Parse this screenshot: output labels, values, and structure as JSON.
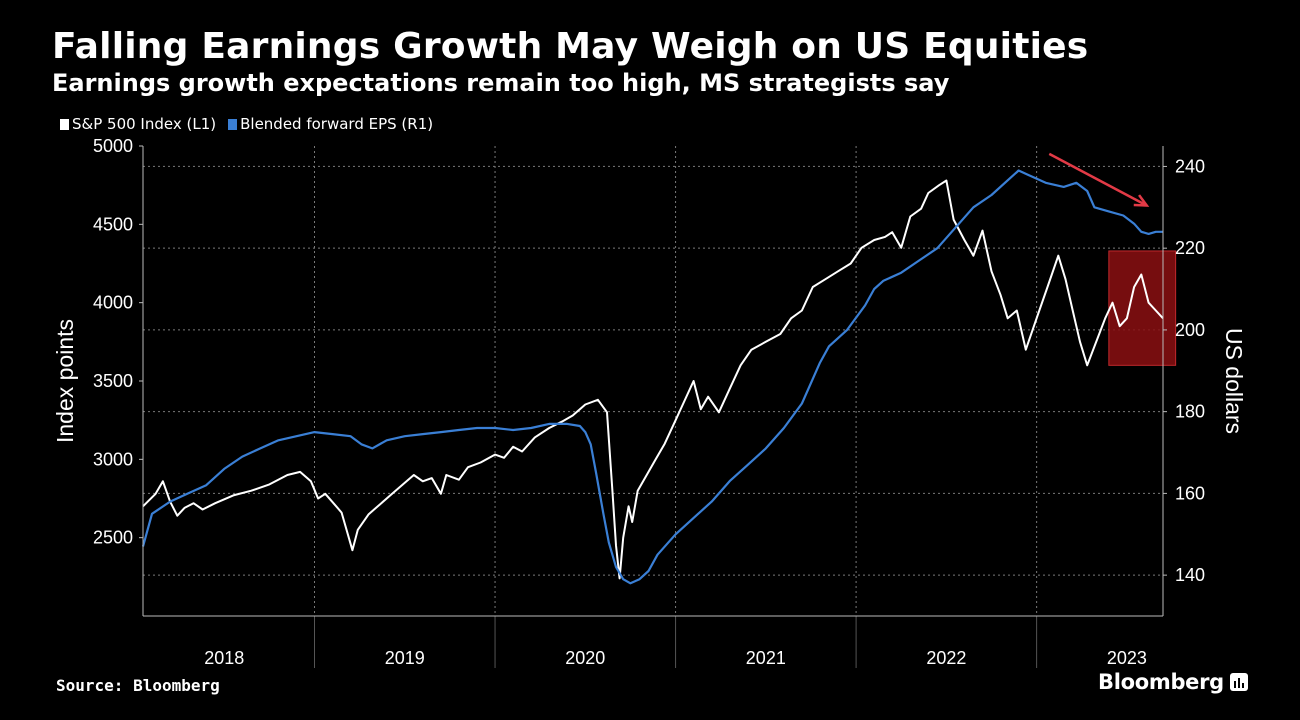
{
  "header": {
    "title": "Falling Earnings Growth May Weigh on US Equities",
    "subtitle": "Earnings growth expectations remain too high, MS strategists say"
  },
  "legend": {
    "sp500": "S&P 500 Index (L1)",
    "eps": "Blended forward EPS (R1)"
  },
  "footer": {
    "source": "Source: Bloomberg",
    "brand": "Bloomberg"
  },
  "colors": {
    "background": "#000000",
    "sp500": "#ffffff",
    "eps": "#3a7fd5",
    "highlight": "#8b0f12",
    "arrow": "#e23a46",
    "grid": "#7a7a7a"
  },
  "chart_data": {
    "type": "line",
    "title": "Falling Earnings Growth May Weigh on US Equities",
    "ylabel_left": "Index points",
    "ylabel_right": "US dollars",
    "xlabel": "",
    "x_range": [
      2017.55,
      2023.2
    ],
    "ylim_left": [
      2000,
      5000
    ],
    "ylim_right": [
      130,
      245
    ],
    "yticks_left": [
      2500,
      3000,
      3500,
      4000,
      4500,
      5000
    ],
    "yticks_right": [
      140,
      160,
      180,
      200,
      220,
      240
    ],
    "x_tick_labels": [
      {
        "label": "2018",
        "x": 2018.0
      },
      {
        "label": "2019",
        "x": 2019.0
      },
      {
        "label": "2020",
        "x": 2020.0
      },
      {
        "label": "2021",
        "x": 2021.0
      },
      {
        "label": "2022",
        "x": 2022.0
      },
      {
        "label": "2023",
        "x": 2023.0
      }
    ],
    "x_dividers": [
      2018.5,
      2019.5,
      2020.5,
      2021.5,
      2022.5
    ],
    "grid": true,
    "series": [
      {
        "name": "S&P 500 Index (L1)",
        "axis": "left",
        "points": [
          [
            2017.55,
            2700
          ],
          [
            2017.62,
            2780
          ],
          [
            2017.66,
            2860
          ],
          [
            2017.7,
            2730
          ],
          [
            2017.74,
            2640
          ],
          [
            2017.78,
            2690
          ],
          [
            2017.83,
            2720
          ],
          [
            2017.88,
            2680
          ],
          [
            2017.95,
            2720
          ],
          [
            2018.05,
            2770
          ],
          [
            2018.15,
            2800
          ],
          [
            2018.25,
            2840
          ],
          [
            2018.35,
            2900
          ],
          [
            2018.42,
            2920
          ],
          [
            2018.48,
            2860
          ],
          [
            2018.52,
            2750
          ],
          [
            2018.56,
            2780
          ],
          [
            2018.62,
            2700
          ],
          [
            2018.65,
            2660
          ],
          [
            2018.71,
            2420
          ],
          [
            2018.74,
            2550
          ],
          [
            2018.8,
            2650
          ],
          [
            2018.87,
            2720
          ],
          [
            2018.93,
            2780
          ],
          [
            2019.0,
            2850
          ],
          [
            2019.05,
            2900
          ],
          [
            2019.1,
            2860
          ],
          [
            2019.15,
            2880
          ],
          [
            2019.2,
            2780
          ],
          [
            2019.23,
            2900
          ],
          [
            2019.3,
            2870
          ],
          [
            2019.35,
            2950
          ],
          [
            2019.42,
            2980
          ],
          [
            2019.5,
            3030
          ],
          [
            2019.55,
            3010
          ],
          [
            2019.6,
            3080
          ],
          [
            2019.65,
            3050
          ],
          [
            2019.72,
            3140
          ],
          [
            2019.8,
            3200
          ],
          [
            2019.87,
            3240
          ],
          [
            2019.93,
            3280
          ],
          [
            2020.0,
            3350
          ],
          [
            2020.07,
            3380
          ],
          [
            2020.12,
            3300
          ],
          [
            2020.15,
            2800
          ],
          [
            2020.17,
            2450
          ],
          [
            2020.19,
            2240
          ],
          [
            2020.21,
            2500
          ],
          [
            2020.24,
            2700
          ],
          [
            2020.26,
            2600
          ],
          [
            2020.29,
            2800
          ],
          [
            2020.34,
            2900
          ],
          [
            2020.39,
            3000
          ],
          [
            2020.44,
            3100
          ],
          [
            2020.5,
            3250
          ],
          [
            2020.54,
            3350
          ],
          [
            2020.6,
            3500
          ],
          [
            2020.64,
            3320
          ],
          [
            2020.68,
            3400
          ],
          [
            2020.74,
            3300
          ],
          [
            2020.8,
            3450
          ],
          [
            2020.86,
            3600
          ],
          [
            2020.92,
            3700
          ],
          [
            2021.0,
            3750
          ],
          [
            2021.08,
            3800
          ],
          [
            2021.14,
            3900
          ],
          [
            2021.2,
            3950
          ],
          [
            2021.26,
            4100
          ],
          [
            2021.33,
            4150
          ],
          [
            2021.4,
            4200
          ],
          [
            2021.47,
            4250
          ],
          [
            2021.53,
            4350
          ],
          [
            2021.6,
            4400
          ],
          [
            2021.66,
            4420
          ],
          [
            2021.7,
            4450
          ],
          [
            2021.75,
            4350
          ],
          [
            2021.8,
            4550
          ],
          [
            2021.86,
            4600
          ],
          [
            2021.9,
            4700
          ],
          [
            2021.96,
            4750
          ],
          [
            2022.0,
            4780
          ],
          [
            2022.04,
            4530
          ],
          [
            2022.1,
            4400
          ],
          [
            2022.15,
            4300
          ],
          [
            2022.2,
            4460
          ],
          [
            2022.25,
            4200
          ],
          [
            2022.3,
            4050
          ],
          [
            2022.34,
            3900
          ],
          [
            2022.39,
            3950
          ],
          [
            2022.44,
            3700
          ],
          [
            2022.5,
            3900
          ],
          [
            2022.56,
            4100
          ],
          [
            2022.62,
            4300
          ],
          [
            2022.66,
            4150
          ],
          [
            2022.7,
            3950
          ],
          [
            2022.74,
            3750
          ],
          [
            2022.78,
            3600
          ],
          [
            2022.84,
            3780
          ],
          [
            2022.88,
            3900
          ],
          [
            2022.92,
            4000
          ],
          [
            2022.96,
            3850
          ],
          [
            2023.0,
            3900
          ],
          [
            2023.04,
            4100
          ],
          [
            2023.08,
            4180
          ],
          [
            2023.12,
            4000
          ],
          [
            2023.16,
            3950
          ],
          [
            2023.2,
            3900
          ]
        ]
      },
      {
        "name": "Blended forward EPS (R1)",
        "axis": "right",
        "points": [
          [
            2017.55,
            147
          ],
          [
            2017.6,
            155
          ],
          [
            2017.7,
            158
          ],
          [
            2017.8,
            160
          ],
          [
            2017.9,
            162
          ],
          [
            2018.0,
            166
          ],
          [
            2018.1,
            169
          ],
          [
            2018.2,
            171
          ],
          [
            2018.3,
            173
          ],
          [
            2018.4,
            174
          ],
          [
            2018.5,
            175
          ],
          [
            2018.6,
            174.5
          ],
          [
            2018.7,
            174
          ],
          [
            2018.76,
            172
          ],
          [
            2018.82,
            171
          ],
          [
            2018.9,
            173
          ],
          [
            2019.0,
            174
          ],
          [
            2019.1,
            174.5
          ],
          [
            2019.2,
            175
          ],
          [
            2019.3,
            175.5
          ],
          [
            2019.4,
            176
          ],
          [
            2019.5,
            176
          ],
          [
            2019.6,
            175.5
          ],
          [
            2019.7,
            176
          ],
          [
            2019.8,
            177
          ],
          [
            2019.9,
            177
          ],
          [
            2019.97,
            176.5
          ],
          [
            2020.0,
            175
          ],
          [
            2020.03,
            172
          ],
          [
            2020.06,
            165
          ],
          [
            2020.1,
            155
          ],
          [
            2020.13,
            148
          ],
          [
            2020.17,
            142
          ],
          [
            2020.21,
            139
          ],
          [
            2020.25,
            138
          ],
          [
            2020.3,
            139
          ],
          [
            2020.35,
            141
          ],
          [
            2020.4,
            145
          ],
          [
            2020.5,
            150
          ],
          [
            2020.6,
            154
          ],
          [
            2020.7,
            158
          ],
          [
            2020.8,
            163
          ],
          [
            2020.9,
            167
          ],
          [
            2021.0,
            171
          ],
          [
            2021.1,
            176
          ],
          [
            2021.2,
            182
          ],
          [
            2021.3,
            192
          ],
          [
            2021.35,
            196
          ],
          [
            2021.45,
            200
          ],
          [
            2021.55,
            206
          ],
          [
            2021.6,
            210
          ],
          [
            2021.65,
            212
          ],
          [
            2021.75,
            214
          ],
          [
            2021.85,
            217
          ],
          [
            2021.95,
            220
          ],
          [
            2022.05,
            225
          ],
          [
            2022.15,
            230
          ],
          [
            2022.25,
            233
          ],
          [
            2022.35,
            237
          ],
          [
            2022.4,
            239
          ],
          [
            2022.45,
            238
          ],
          [
            2022.55,
            236
          ],
          [
            2022.65,
            235
          ],
          [
            2022.72,
            236
          ],
          [
            2022.78,
            234
          ],
          [
            2022.82,
            230
          ],
          [
            2022.9,
            229
          ],
          [
            2022.98,
            228
          ],
          [
            2023.04,
            226
          ],
          [
            2023.08,
            224
          ],
          [
            2023.12,
            223.5
          ],
          [
            2023.16,
            224
          ],
          [
            2023.2,
            224
          ]
        ]
      }
    ],
    "annotations": [
      {
        "type": "highlight-box",
        "x_range": [
          2022.9,
          2023.27
        ],
        "y_range_left": [
          3600,
          4330
        ]
      },
      {
        "type": "arrow",
        "from": [
          2022.57,
          4950
        ],
        "to": [
          2023.11,
          4620
        ],
        "direction": "down-right"
      }
    ]
  }
}
